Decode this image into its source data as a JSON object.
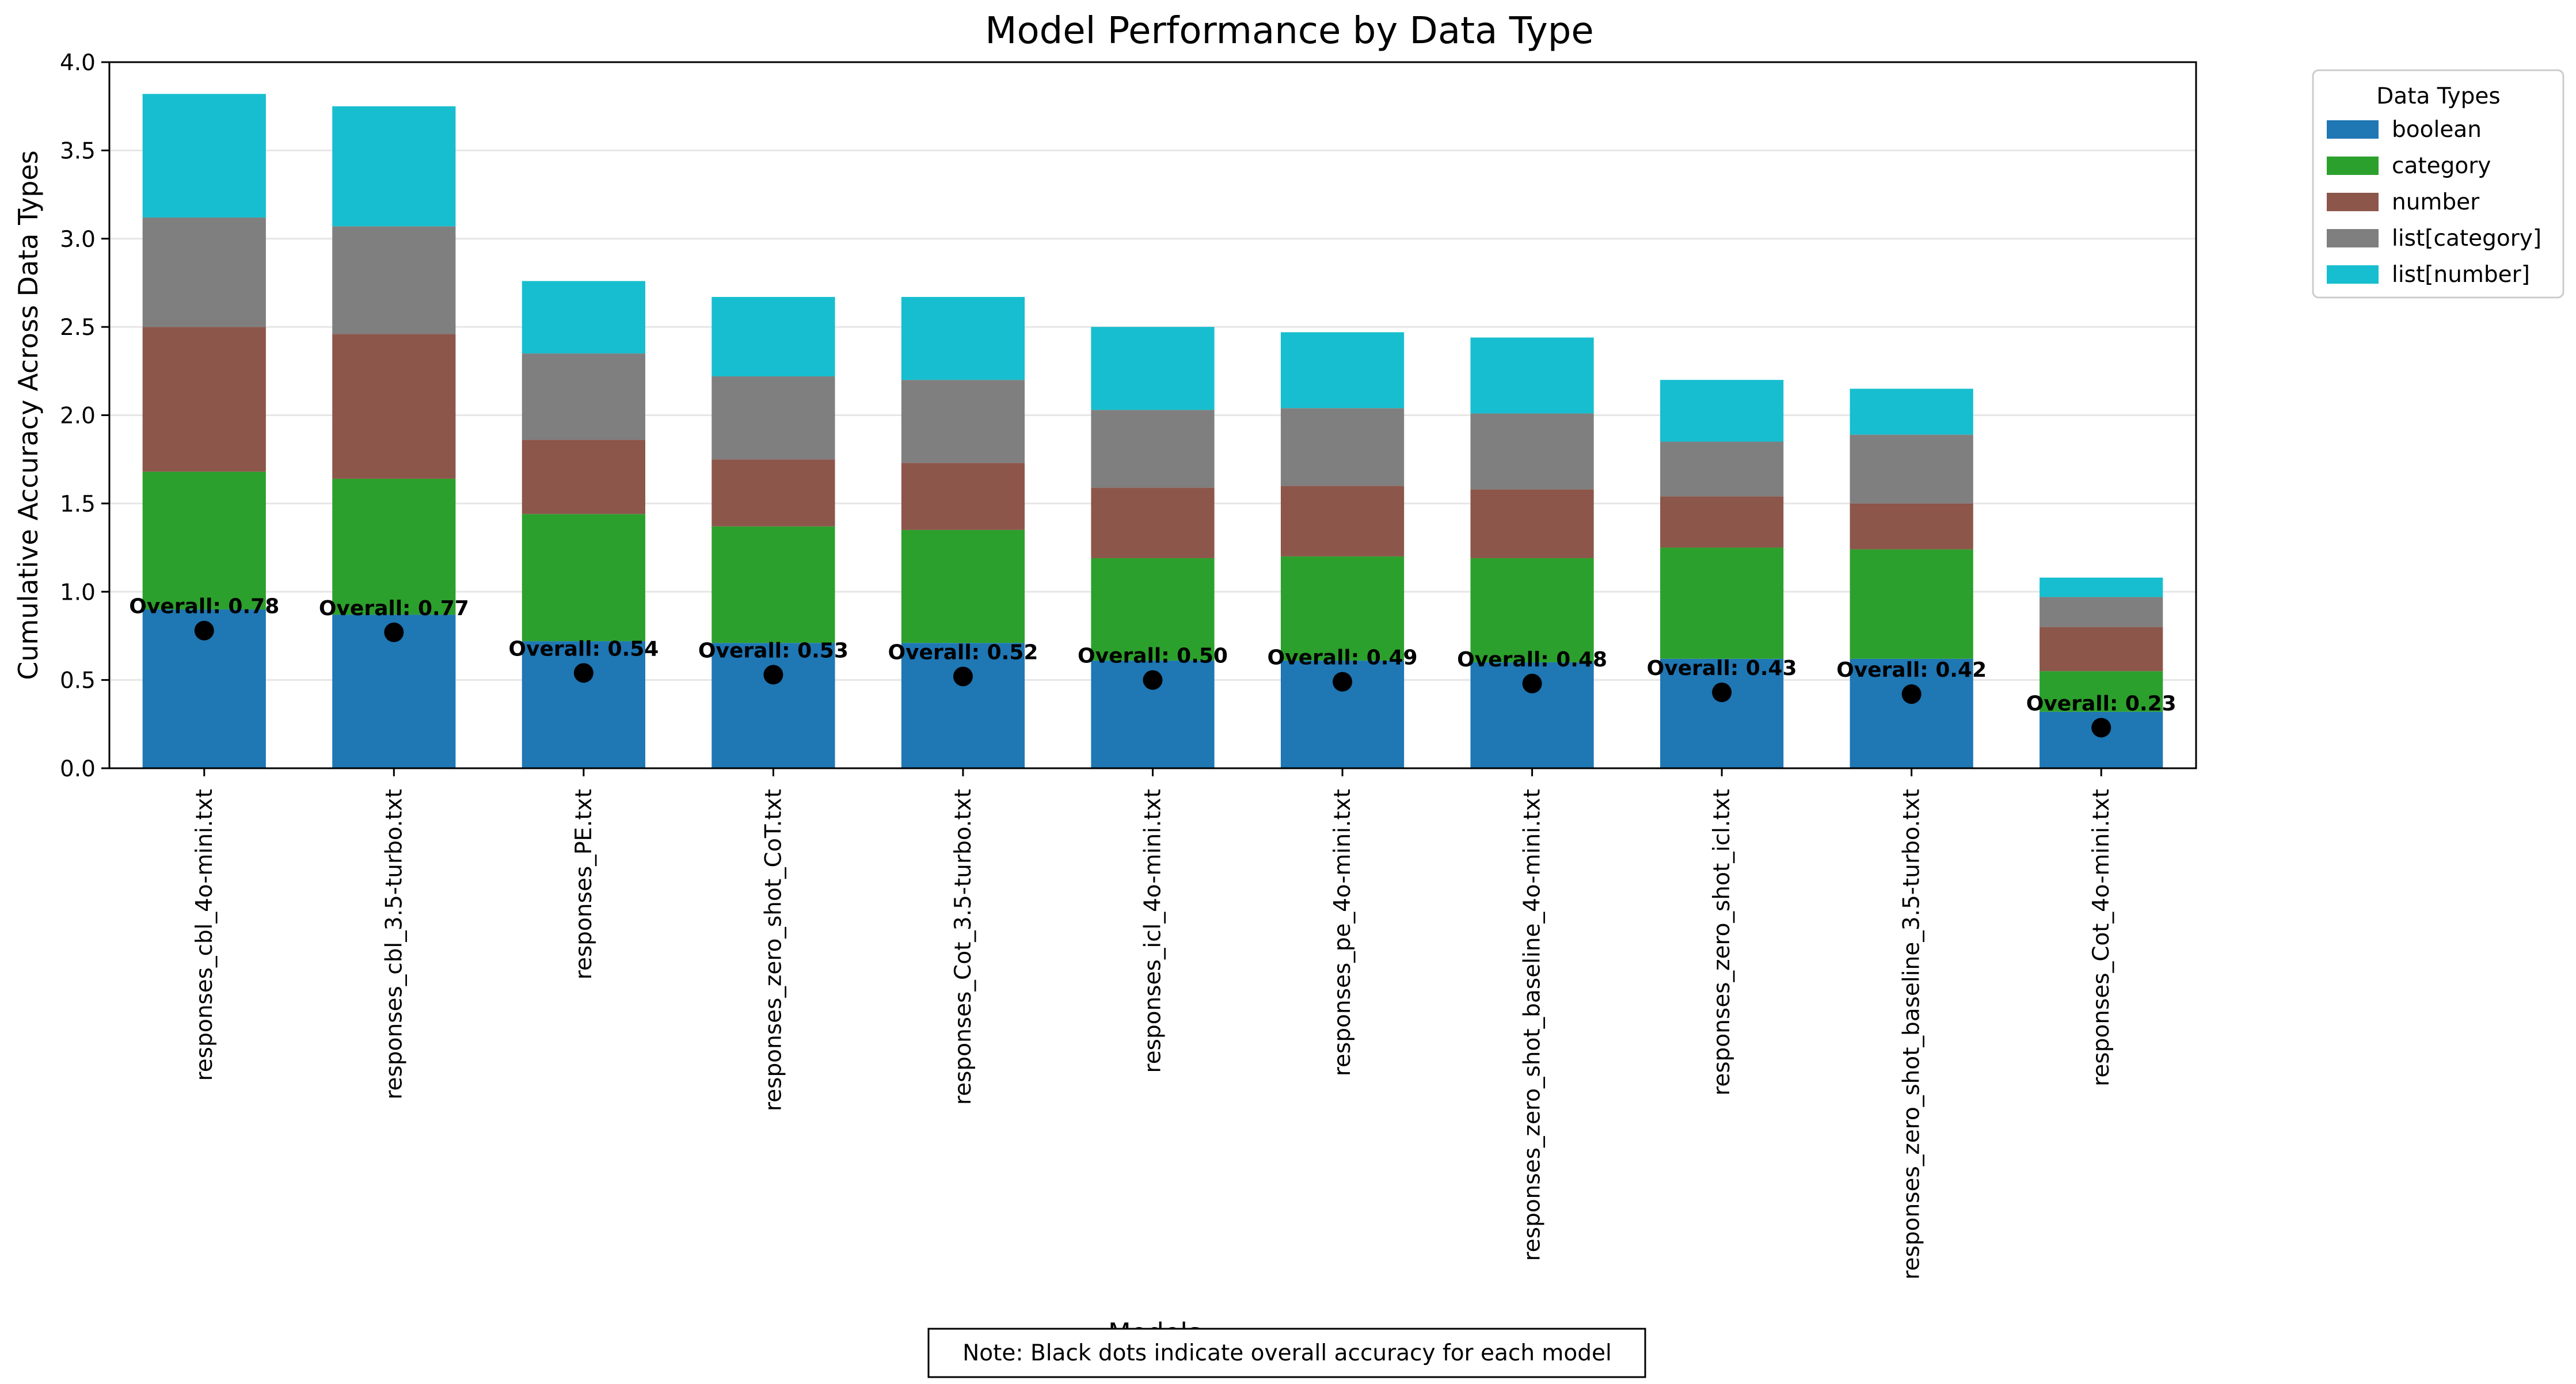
{
  "chart_data": {
    "type": "bar",
    "stacked": true,
    "title": "Model Performance by Data Type",
    "xlabel": "Models",
    "ylabel": "Cumulative Accuracy Across Data Types",
    "ylim": [
      0,
      4.0
    ],
    "yticks": [
      "0.0",
      "0.5",
      "1.0",
      "1.5",
      "2.0",
      "2.5",
      "3.0",
      "3.5",
      "4.0"
    ],
    "grid": "y",
    "legend": {
      "title": "Data Types",
      "position": "outside-top-right"
    },
    "categories": [
      "responses_cbl_4o-mini.txt",
      "responses_cbl_3.5-turbo.txt",
      "responses_PE.txt",
      "responses_zero_shot_CoT.txt",
      "responses_Cot_3.5-turbo.txt",
      "responses_icl_4o-mini.txt",
      "responses_pe_4o-mini.txt",
      "responses_zero_shot_baseline_4o-mini.txt",
      "responses_zero_shot_icl.txt",
      "responses_zero_shot_baseline_3.5-turbo.txt",
      "responses_Cot_4o-mini.txt"
    ],
    "series": [
      {
        "name": "boolean",
        "color": "#1f77b4",
        "values": [
          0.9,
          0.87,
          0.72,
          0.71,
          0.71,
          0.61,
          0.61,
          0.6,
          0.62,
          0.62,
          0.32
        ]
      },
      {
        "name": "category",
        "color": "#2ca02c",
        "values": [
          0.78,
          0.77,
          0.72,
          0.66,
          0.64,
          0.58,
          0.59,
          0.59,
          0.63,
          0.62,
          0.23
        ]
      },
      {
        "name": "number",
        "color": "#8c564b",
        "values": [
          0.82,
          0.82,
          0.42,
          0.38,
          0.38,
          0.4,
          0.4,
          0.39,
          0.29,
          0.26,
          0.25
        ]
      },
      {
        "name": "list[category]",
        "color": "#7f7f7f",
        "values": [
          0.62,
          0.61,
          0.49,
          0.47,
          0.47,
          0.44,
          0.44,
          0.43,
          0.31,
          0.39,
          0.17
        ]
      },
      {
        "name": "list[number]",
        "color": "#17becf",
        "values": [
          0.7,
          0.68,
          0.41,
          0.45,
          0.47,
          0.47,
          0.43,
          0.43,
          0.35,
          0.26,
          0.11
        ]
      }
    ],
    "overall": [
      0.78,
      0.77,
      0.54,
      0.53,
      0.52,
      0.5,
      0.49,
      0.48,
      0.43,
      0.42,
      0.23
    ],
    "overall_label_prefix": "Overall: ",
    "overall_color": "#000000",
    "note": "Note: Black dots indicate overall accuracy for each model"
  }
}
